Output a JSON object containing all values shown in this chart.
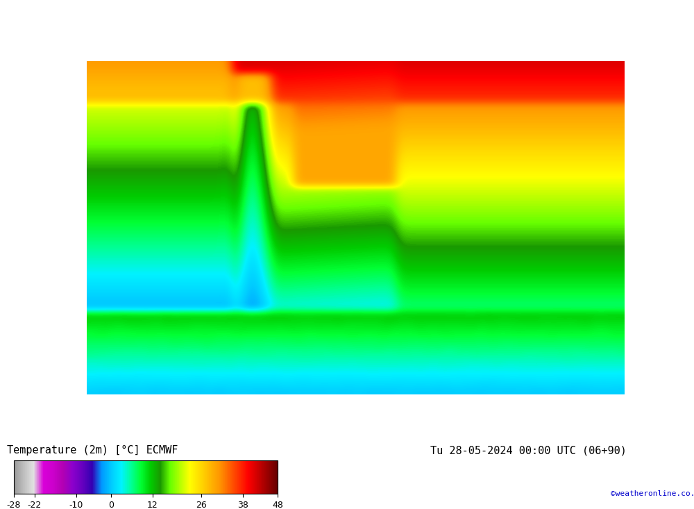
{
  "title_left": "Temperature (2m) [°C] ECMWF",
  "title_right": "Tu 28-05-2024 00:00 UTC (06+90)",
  "credit": "©weatheronline.co.uk",
  "colorbar_ticks": [
    -28,
    -22,
    -10,
    0,
    12,
    26,
    38,
    48
  ],
  "colorbar_colors": [
    "#aaaaaa",
    "#c8c8c8",
    "#e0e0e0",
    "#dd00dd",
    "#cc00cc",
    "#aa00aa",
    "#8800cc",
    "#6600bb",
    "#4400aa",
    "#00aaff",
    "#00ccff",
    "#00eeff",
    "#00ff99",
    "#00ff44",
    "#00cc00",
    "#009900",
    "#66ff00",
    "#aaff00",
    "#ffff00",
    "#ffdd00",
    "#ffbb00",
    "#ff9900",
    "#ff6600",
    "#ff3300",
    "#ff0000",
    "#cc0000",
    "#990000",
    "#660000"
  ],
  "background_color": "#ffffff",
  "map_bg": "#ffffff",
  "fig_width": 10.0,
  "fig_height": 7.33
}
